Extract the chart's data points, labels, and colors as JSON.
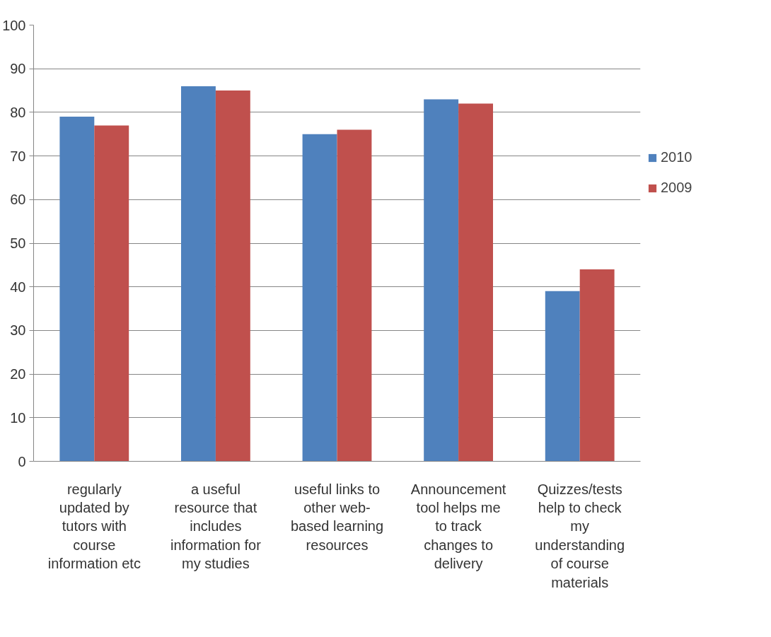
{
  "chart_data": {
    "type": "bar",
    "categories": [
      "regularly\nupdated by\ntutors with\ncourse\ninformation etc",
      "a useful\nresource that\nincludes\ninformation for\nmy studies",
      "useful links to\nother web-\nbased learning\nresources",
      "Announcement\ntool helps me\nto track\nchanges to\ndelivery",
      "Quizzes/tests\nhelp to check\nmy\nunderstanding\nof course\nmaterials"
    ],
    "series": [
      {
        "name": "2010",
        "color": "#4f81bd",
        "values": [
          79,
          86,
          75,
          83,
          39
        ]
      },
      {
        "name": "2009",
        "color": "#c0504d",
        "values": [
          77,
          85,
          76,
          82,
          44
        ]
      }
    ],
    "ylim": [
      0,
      100
    ],
    "yticks": [
      0,
      10,
      20,
      30,
      40,
      50,
      60,
      70,
      80,
      90,
      100
    ],
    "grid": "y",
    "legend": "right"
  }
}
